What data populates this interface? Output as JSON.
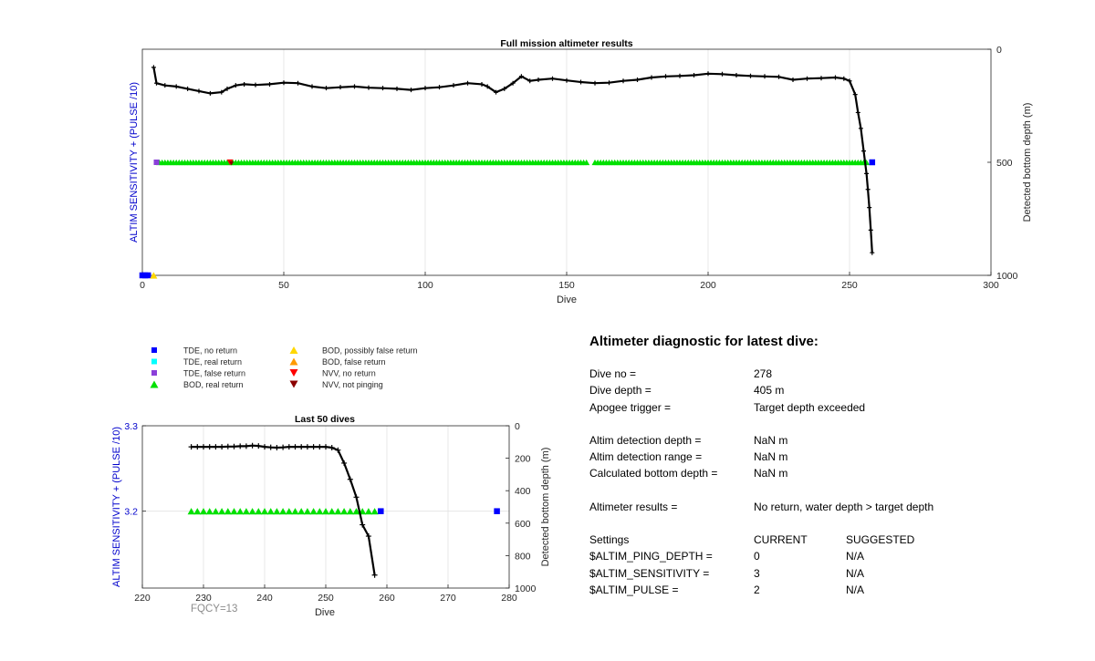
{
  "colors": {
    "tde_no_return": "#0000ff",
    "tde_real_return": "#00ffff",
    "tde_false_return": "#8b3fd9",
    "bod_real_return": "#00e000",
    "bod_possibly_false": "#ffd700",
    "bod_false_return": "#ff9a00",
    "nvv_no_return": "#ff0000",
    "nvv_not_pinging": "#8b0000",
    "depth_line": "#000000",
    "left_axis_label": "#0000cc"
  },
  "chart_data": [
    {
      "type": "scatter",
      "title": "Full mission altimeter results",
      "xlabel": "Dive",
      "ylabel": "ALTIM SENSITIVITY + (PULSE /10)",
      "y2label": "Detected bottom depth (m)",
      "xlim": [
        0,
        300
      ],
      "x_ticks": [
        "0",
        "50",
        "100",
        "150",
        "200",
        "250",
        "300"
      ],
      "y2lim": [
        0,
        1000
      ],
      "y2_ticks": [
        "0",
        "500",
        "1000"
      ],
      "y2_reversed": true,
      "grid": "vertical",
      "depth_series": {
        "x": [
          4,
          5,
          8,
          12,
          16,
          20,
          24,
          28,
          30,
          33,
          36,
          40,
          45,
          50,
          55,
          60,
          65,
          70,
          75,
          80,
          85,
          90,
          95,
          100,
          105,
          110,
          115,
          120,
          122,
          125,
          128,
          131,
          134,
          137,
          140,
          145,
          150,
          155,
          160,
          165,
          170,
          175,
          180,
          185,
          190,
          195,
          200,
          205,
          210,
          215,
          220,
          225,
          230,
          235,
          240,
          245,
          248,
          250,
          252,
          253,
          254,
          255,
          256,
          256.5,
          257,
          257.5,
          258
        ],
        "y": [
          80,
          150,
          160,
          165,
          175,
          185,
          195,
          190,
          175,
          160,
          155,
          158,
          155,
          148,
          150,
          165,
          172,
          168,
          165,
          170,
          172,
          175,
          180,
          172,
          168,
          160,
          150,
          155,
          165,
          190,
          175,
          150,
          120,
          140,
          135,
          130,
          138,
          145,
          150,
          148,
          140,
          135,
          125,
          120,
          118,
          115,
          108,
          110,
          115,
          118,
          120,
          122,
          135,
          130,
          128,
          125,
          130,
          140,
          200,
          280,
          350,
          450,
          550,
          620,
          700,
          800,
          900
        ]
      },
      "bod_real_return": {
        "x_ranges": [
          [
            6,
            157
          ],
          [
            160,
            256
          ]
        ],
        "y": 500
      },
      "tde_false_return": {
        "x": [
          5
        ],
        "y": 500
      },
      "nvv_no_return": {
        "x": [
          31
        ],
        "y": 500
      },
      "nvv_not_pinging": {
        "x": [
          31.5
        ],
        "y": 505
      },
      "tde_no_return": {
        "x": [
          0,
          1,
          2,
          258
        ],
        "y": [
          1000,
          1000,
          1000,
          500
        ]
      },
      "bod_possibly_false": {
        "x": [
          4
        ],
        "y": 1000
      }
    },
    {
      "type": "scatter",
      "title": "Last 50 dives",
      "xlabel": "Dive",
      "ylabel": "ALTIM SENSITIVITY + (PULSE /10)",
      "y2label": "Detected bottom depth (m)",
      "xlim": [
        220,
        280
      ],
      "x_ticks": [
        "220",
        "230",
        "240",
        "250",
        "260",
        "270",
        "280"
      ],
      "ylim": [
        3.11,
        3.3
      ],
      "y_ticks": [
        "3.2",
        "3.3"
      ],
      "y2lim": [
        0,
        1000
      ],
      "y2_ticks": [
        "0",
        "200",
        "400",
        "600",
        "800",
        "1000"
      ],
      "y2_reversed": true,
      "grid": "both",
      "depth_series": {
        "x": [
          228,
          229,
          230,
          231,
          232,
          233,
          234,
          235,
          236,
          237,
          238,
          239,
          240,
          241,
          242,
          243,
          244,
          245,
          246,
          247,
          248,
          249,
          250,
          251,
          252,
          253,
          254,
          255,
          256,
          257,
          258
        ],
        "y": [
          130,
          130,
          130,
          130,
          130,
          130,
          128,
          128,
          126,
          126,
          122,
          124,
          130,
          133,
          135,
          133,
          130,
          130,
          130,
          130,
          130,
          130,
          130,
          135,
          150,
          230,
          330,
          440,
          610,
          680,
          920
        ]
      },
      "bod_real_return": {
        "x": [
          228,
          229,
          230,
          231,
          232,
          233,
          234,
          235,
          236,
          237,
          238,
          239,
          240,
          241,
          242,
          243,
          244,
          245,
          246,
          247,
          248,
          249,
          250,
          251,
          252,
          253,
          254,
          255,
          256,
          257,
          258
        ],
        "y": 3.2
      },
      "tde_no_return": {
        "x": [
          259,
          278
        ],
        "y": [
          3.2,
          3.2
        ]
      }
    }
  ],
  "bottom_note": "FQCY=13",
  "legend": {
    "items": [
      {
        "label": "TDE, no return",
        "key": "tde_no_return",
        "shape": "square"
      },
      {
        "label": "TDE, real return",
        "key": "tde_real_return",
        "shape": "square"
      },
      {
        "label": "TDE, false return",
        "key": "tde_false_return",
        "shape": "square"
      },
      {
        "label": "BOD, real return",
        "key": "bod_real_return",
        "shape": "triangle-up"
      },
      {
        "label": "BOD, possibly false return",
        "key": "bod_possibly_false",
        "shape": "triangle-up"
      },
      {
        "label": "BOD, false return",
        "key": "bod_false_return",
        "shape": "triangle-up"
      },
      {
        "label": "NVV, no return",
        "key": "nvv_no_return",
        "shape": "triangle-down"
      },
      {
        "label": "NVV, not pinging",
        "key": "nvv_not_pinging",
        "shape": "triangle-down"
      }
    ]
  },
  "diagnostic": {
    "title": "Altimeter diagnostic for latest dive:",
    "dive_no_label": "Dive no =",
    "dive_no": "278",
    "dive_depth_label": "Dive depth =",
    "dive_depth": "405 m",
    "apogee_trigger_label": "Apogee trigger =",
    "apogee_trigger": "Target depth exceeded",
    "altim_detection_depth_label": "Altim detection depth =",
    "altim_detection_depth": "NaN m",
    "altim_detection_range_label": "Altim detection range =",
    "altim_detection_range": "NaN m",
    "calculated_bottom_depth_label": "Calculated bottom depth =",
    "calculated_bottom_depth": "NaN m",
    "altimeter_results_label": "Altimeter results =",
    "altimeter_results": "No return, water depth > target depth",
    "settings_label": "Settings",
    "current_label": "CURRENT",
    "suggested_label": "SUGGESTED",
    "settings": [
      {
        "name": "$ALTIM_PING_DEPTH =",
        "current": "0",
        "suggested": "N/A"
      },
      {
        "name": "$ALTIM_SENSITIVITY =",
        "current": "3",
        "suggested": "N/A"
      },
      {
        "name": "$ALTIM_PULSE =",
        "current": "2",
        "suggested": "N/A"
      }
    ]
  }
}
